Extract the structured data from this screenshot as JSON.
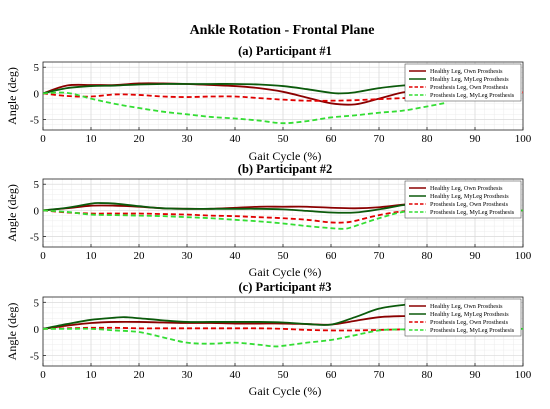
{
  "figure_title": "Ankle Rotation - Frontal Plane",
  "legend": [
    {
      "label": "Healthy Leg, Own Prosthesis",
      "color": "#8B0000",
      "dash": "solid"
    },
    {
      "label": "Healthy Leg, MyLeg Prosthesis",
      "color": "#0B5A0B",
      "dash": "solid"
    },
    {
      "label": "Prosthesis Leg, Own Prosthesis",
      "color": "#E00000",
      "dash": "dashed"
    },
    {
      "label": "Prosthesis Leg, MyLeg Prosthesis",
      "color": "#33DD33",
      "dash": "dashed"
    }
  ],
  "chart_data": [
    {
      "type": "line",
      "title": "(a) Participant #1",
      "xlabel": "Gait Cycle (%)",
      "ylabel": "Angle (deg)",
      "xlim": [
        0,
        100
      ],
      "ylim": [
        -7,
        6
      ],
      "xticks": [
        0,
        10,
        20,
        30,
        40,
        50,
        60,
        70,
        80,
        90,
        100
      ],
      "yticks": [
        -5,
        0,
        5
      ],
      "grid": true,
      "legend_position": "top-right",
      "series": [
        {
          "name": "Healthy Leg, Own Prosthesis",
          "x": [
            0,
            5,
            10,
            15,
            20,
            25,
            30,
            35,
            40,
            45,
            50,
            55,
            60,
            65,
            70,
            75,
            78
          ],
          "y": [
            0,
            1.5,
            1.6,
            1.6,
            1.9,
            1.9,
            1.8,
            1.6,
            1.4,
            1.0,
            0.3,
            -0.8,
            -1.9,
            -2.1,
            -1.0,
            0.2,
            0.3
          ]
        },
        {
          "name": "Healthy Leg, MyLeg Prosthesis",
          "x": [
            0,
            5,
            10,
            15,
            20,
            25,
            30,
            35,
            40,
            45,
            50,
            55,
            60,
            62,
            65,
            70,
            75,
            78
          ],
          "y": [
            0,
            1.0,
            1.4,
            1.5,
            1.7,
            1.8,
            1.8,
            1.8,
            1.8,
            1.7,
            1.4,
            0.8,
            0.1,
            0.0,
            0.2,
            1.0,
            1.5,
            1.6
          ]
        },
        {
          "name": "Prosthesis Leg, Own Prosthesis",
          "x": [
            0,
            5,
            10,
            15,
            20,
            25,
            30,
            35,
            40,
            45,
            50,
            55,
            60,
            65,
            70,
            75,
            80,
            85,
            90,
            95,
            100
          ],
          "y": [
            0,
            -0.5,
            -0.6,
            -0.2,
            -0.3,
            -0.6,
            -0.7,
            -0.6,
            -0.6,
            -0.9,
            -1.2,
            -1.4,
            -1.4,
            -1.3,
            -1.1,
            -0.9,
            -0.8,
            -0.7,
            -0.6,
            -0.5,
            0.2
          ]
        },
        {
          "name": "Prosthesis Leg, MyLeg Prosthesis",
          "x": [
            0,
            5,
            10,
            15,
            20,
            25,
            30,
            35,
            40,
            45,
            50,
            55,
            60,
            65,
            70,
            75,
            80,
            84
          ],
          "y": [
            0,
            0.1,
            -1.0,
            -2.0,
            -2.8,
            -3.5,
            -4.0,
            -4.5,
            -4.8,
            -5.2,
            -5.7,
            -5.3,
            -4.6,
            -4.2,
            -3.7,
            -3.3,
            -2.5,
            -1.8
          ]
        }
      ]
    },
    {
      "type": "line",
      "title": "(b) Participant #2",
      "xlabel": "Gait Cycle (%)",
      "ylabel": "Angle (deg)",
      "xlim": [
        0,
        100
      ],
      "ylim": [
        -7,
        6
      ],
      "xticks": [
        0,
        10,
        20,
        30,
        40,
        50,
        60,
        70,
        80,
        90,
        100
      ],
      "yticks": [
        -5,
        0,
        5
      ],
      "grid": true,
      "legend_position": "top-right",
      "series": [
        {
          "name": "Healthy Leg, Own Prosthesis",
          "x": [
            0,
            5,
            10,
            15,
            20,
            25,
            30,
            35,
            40,
            45,
            50,
            55,
            60,
            65,
            70,
            75,
            78
          ],
          "y": [
            0,
            0.4,
            0.9,
            0.9,
            0.7,
            0.4,
            0.3,
            0.3,
            0.5,
            0.7,
            0.7,
            0.7,
            0.5,
            0.4,
            0.6,
            1.1,
            1.3
          ]
        },
        {
          "name": "Healthy Leg, MyLeg Prosthesis",
          "x": [
            0,
            5,
            10,
            12,
            15,
            20,
            25,
            30,
            35,
            40,
            45,
            50,
            55,
            60,
            65,
            70,
            75,
            78
          ],
          "y": [
            0,
            0.5,
            1.3,
            1.4,
            1.3,
            0.8,
            0.4,
            0.3,
            0.3,
            0.3,
            0.3,
            0.2,
            -0.1,
            -0.4,
            -0.4,
            0.2,
            1.0,
            1.2
          ]
        },
        {
          "name": "Prosthesis Leg, Own Prosthesis",
          "x": [
            0,
            5,
            10,
            15,
            20,
            25,
            30,
            35,
            40,
            45,
            50,
            55,
            60,
            63,
            65,
            70,
            75,
            80,
            85,
            90,
            95,
            100
          ],
          "y": [
            0,
            -0.4,
            -0.6,
            -0.6,
            -0.6,
            -0.7,
            -0.8,
            -1.0,
            -1.1,
            -1.3,
            -1.5,
            -1.8,
            -2.3,
            -2.3,
            -2.0,
            -0.9,
            -0.2,
            -0.1,
            -0.2,
            -0.4,
            -0.3,
            0
          ]
        },
        {
          "name": "Prosthesis Leg, MyLeg Prosthesis",
          "x": [
            0,
            5,
            10,
            15,
            20,
            25,
            30,
            35,
            40,
            45,
            50,
            55,
            60,
            63,
            65,
            70,
            75,
            80,
            85,
            90,
            95,
            100
          ],
          "y": [
            0,
            -0.3,
            -0.8,
            -0.9,
            -1.0,
            -1.1,
            -1.3,
            -1.5,
            -1.8,
            -2.1,
            -2.5,
            -3.0,
            -3.4,
            -3.5,
            -3.0,
            -1.5,
            -0.3,
            0,
            -0.3,
            -0.7,
            -0.4,
            0
          ]
        }
      ]
    },
    {
      "type": "line",
      "title": "(c) Participant #3",
      "xlabel": "Gait Cycle (%)",
      "ylabel": "Angle (deg)",
      "xlim": [
        0,
        100
      ],
      "ylim": [
        -7,
        6
      ],
      "xticks": [
        0,
        10,
        20,
        30,
        40,
        50,
        60,
        70,
        80,
        90,
        100
      ],
      "yticks": [
        -5,
        0,
        5
      ],
      "grid": true,
      "legend_position": "top-right",
      "series": [
        {
          "name": "Healthy Leg, Own Prosthesis",
          "x": [
            0,
            5,
            10,
            15,
            20,
            25,
            30,
            35,
            40,
            45,
            50,
            55,
            60,
            65,
            70,
            75,
            78
          ],
          "y": [
            0,
            0.6,
            1.1,
            1.3,
            1.3,
            1.2,
            1.1,
            1.1,
            1.0,
            1.0,
            1.0,
            0.9,
            0.8,
            1.5,
            2.2,
            2.4,
            2.4
          ]
        },
        {
          "name": "Healthy Leg, MyLeg Prosthesis",
          "x": [
            0,
            5,
            10,
            15,
            17,
            20,
            25,
            30,
            35,
            40,
            45,
            50,
            55,
            60,
            65,
            70,
            75,
            78
          ],
          "y": [
            0,
            0.9,
            1.7,
            2.1,
            2.2,
            2.0,
            1.6,
            1.3,
            1.3,
            1.3,
            1.3,
            1.2,
            0.9,
            0.8,
            2.2,
            3.8,
            4.5,
            4.6
          ]
        },
        {
          "name": "Prosthesis Leg, Own Prosthesis",
          "x": [
            0,
            5,
            10,
            15,
            20,
            25,
            30,
            35,
            40,
            45,
            50,
            55,
            60,
            65,
            70,
            75,
            80,
            85,
            90,
            95,
            100
          ],
          "y": [
            0,
            0.1,
            0.2,
            0.2,
            0.1,
            0.1,
            0.1,
            0.1,
            0.1,
            0.1,
            0,
            -0.2,
            -0.3,
            -0.3,
            -0.2,
            -0.1,
            0,
            0.1,
            0.1,
            0.1,
            0.1
          ]
        },
        {
          "name": "Prosthesis Leg, MyLeg Prosthesis",
          "x": [
            0,
            5,
            10,
            15,
            20,
            25,
            30,
            35,
            40,
            45,
            48,
            50,
            55,
            60,
            65,
            70,
            75,
            80,
            85,
            90,
            95,
            100
          ],
          "y": [
            0,
            0,
            0,
            -0.3,
            -0.6,
            -1.6,
            -2.6,
            -2.8,
            -2.6,
            -3.0,
            -3.3,
            -3.2,
            -2.6,
            -2.1,
            -1.2,
            -0.3,
            -0.1,
            -0.2,
            -0.1,
            0,
            0.1,
            0
          ]
        }
      ]
    }
  ]
}
